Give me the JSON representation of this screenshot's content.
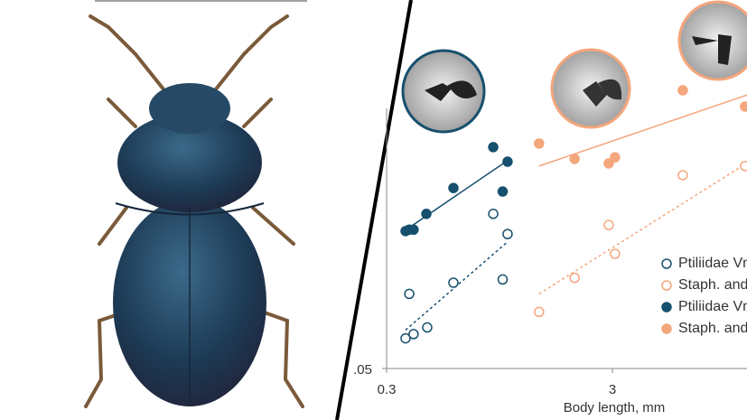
{
  "chart_data": {
    "type": "scatter",
    "x_label": "Body length,  mm",
    "xlim": [
      0.3,
      12
    ],
    "ylim": [
      0.05,
      2
    ],
    "log_x": true,
    "log_y": true,
    "xticks": [
      0.3,
      3
    ],
    "yticks": [
      {
        "value": 0.05,
        "label": ".05"
      }
    ],
    "series": [
      {
        "name": "Ptiliidae Vm",
        "color": "#17506e",
        "filled": false,
        "x": [
          0.364,
          0.395,
          0.378,
          0.454,
          0.593,
          0.89,
          0.98,
          1.03
        ],
        "values": [
          0.068,
          0.071,
          0.107,
          0.076,
          0.12,
          0.242,
          0.124,
          0.197
        ],
        "fit_x": [
          0.364,
          1.03
        ],
        "fit_y": [
          0.074,
          0.182
        ]
      },
      {
        "name": "Staph. and",
        "color": "#f4a67c",
        "filled": false,
        "x": [
          1.42,
          2.04,
          2.89,
          3.08,
          6.15,
          11.6
        ],
        "values": [
          0.089,
          0.126,
          0.216,
          0.161,
          0.359,
          0.394
        ],
        "fit_x": [
          1.42,
          11.9
        ],
        "fit_y": [
          0.107,
          0.408
        ]
      },
      {
        "name": "Ptiliidae Vm",
        "color": "#17506e",
        "filled": true,
        "x": [
          0.364,
          0.378,
          0.395,
          0.45,
          0.593,
          0.89,
          0.98,
          1.03
        ],
        "values": [
          0.203,
          0.206,
          0.206,
          0.242,
          0.315,
          0.478,
          0.304,
          0.412
        ],
        "fit_x": [
          0.364,
          1.03
        ],
        "fit_y": [
          0.205,
          0.417
        ]
      },
      {
        "name": "Staph. and",
        "color": "#f4a67c",
        "filled": true,
        "x": [
          1.42,
          2.04,
          2.89,
          3.08,
          6.15,
          11.6
        ],
        "values": [
          0.496,
          0.424,
          0.405,
          0.431,
          0.853,
          0.723
        ],
        "fit_x": [
          1.42,
          11.9
        ],
        "fit_y": [
          0.394,
          0.815
        ]
      }
    ]
  }
}
